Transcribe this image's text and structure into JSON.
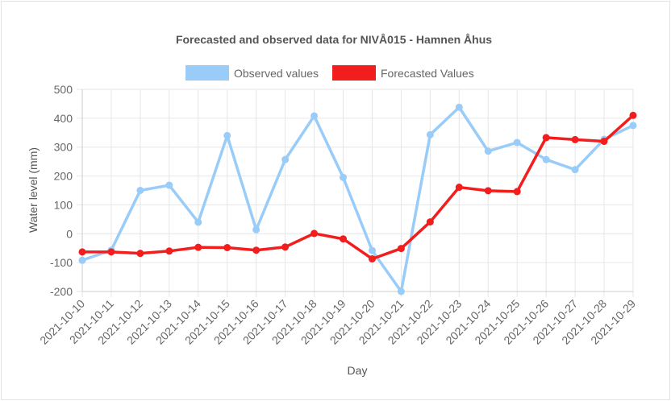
{
  "chart_data": {
    "type": "line",
    "title": "Forecasted and observed data for NIVÅ015 - Hamnen Åhus",
    "xlabel": "Day",
    "ylabel": "Water level (mm)",
    "ylim": [
      -200,
      500
    ],
    "yticks": [
      500,
      400,
      300,
      200,
      100,
      0,
      -100,
      -200
    ],
    "grid": true,
    "legend_position": "top",
    "categories": [
      "2021-10-10",
      "2021-10-11",
      "2021-10-12",
      "2021-10-13",
      "2021-10-14",
      "2021-10-15",
      "2021-10-16",
      "2021-10-17",
      "2021-10-18",
      "2021-10-19",
      "2021-10-20",
      "2021-10-21",
      "2021-10-22",
      "2021-10-23",
      "2021-10-24",
      "2021-10-25",
      "2021-10-26",
      "2021-10-27",
      "2021-10-28",
      "2021-10-29"
    ],
    "series": [
      {
        "name": "Observed values",
        "color": "#99ccf8",
        "values": [
          -92,
          -57,
          150,
          168,
          40,
          340,
          14,
          257,
          408,
          195,
          -58,
          -200,
          343,
          438,
          286,
          316,
          257,
          222,
          327,
          375
        ]
      },
      {
        "name": "Forecasted Values",
        "color": "#f21d1d",
        "values": [
          -63,
          -63,
          -68,
          -60,
          -47,
          -48,
          -57,
          -46,
          1,
          -18,
          -87,
          -51,
          41,
          161,
          149,
          146,
          333,
          326,
          320,
          410
        ]
      }
    ]
  }
}
